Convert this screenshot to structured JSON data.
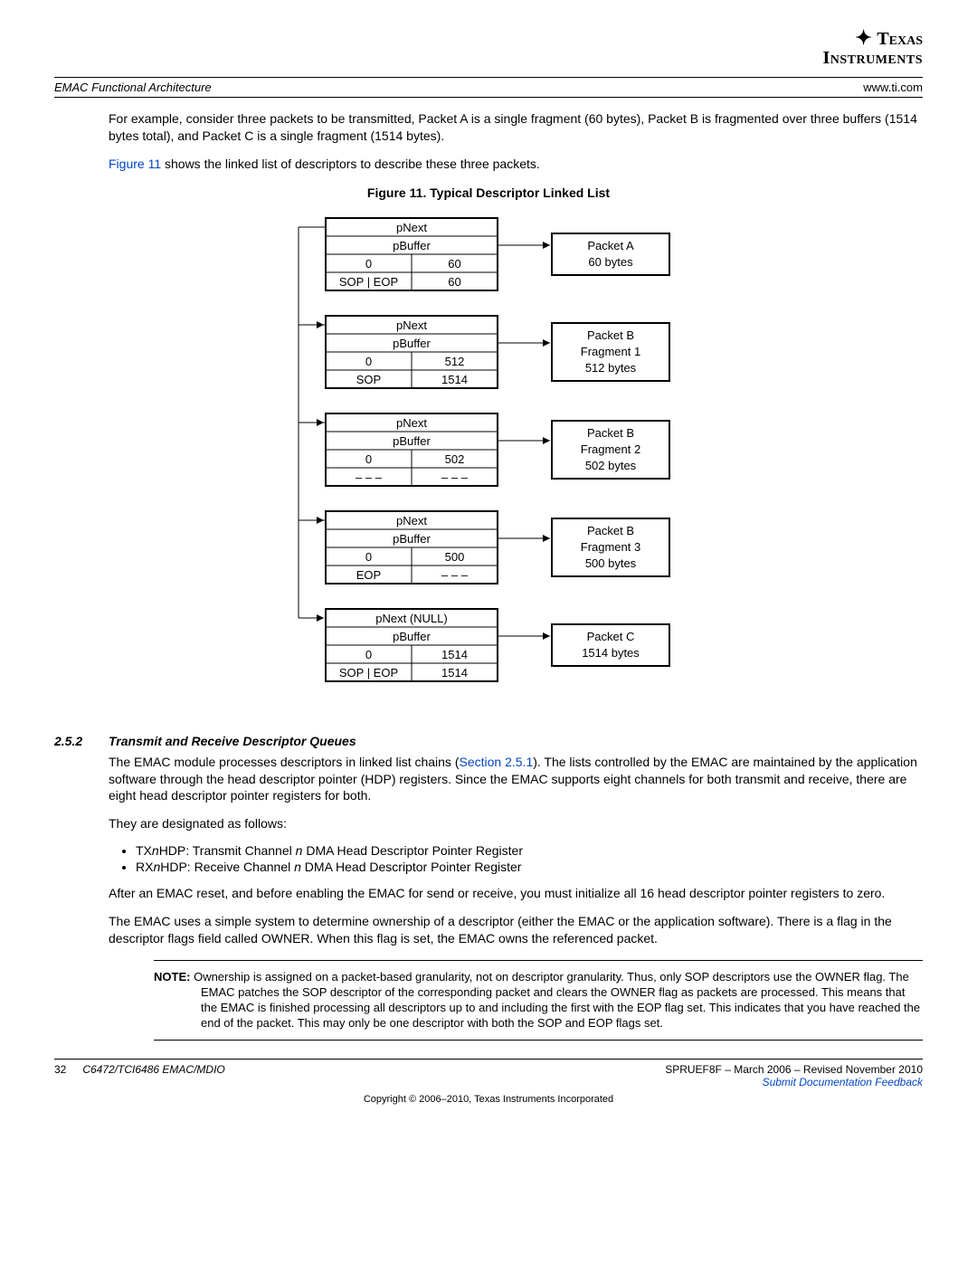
{
  "logo": {
    "line1": "Texas",
    "line2": "Instruments"
  },
  "header": {
    "left": "EMAC Functional Architecture",
    "right": "www.ti.com"
  },
  "para1": "For example, consider three packets to be transmitted, Packet A is a single fragment (60 bytes), Packet B is fragmented over three buffers (1514 bytes total), and Packet C is a single fragment (1514 bytes).",
  "para2_pre": "Figure 11",
  "para2_post": " shows the linked list of descriptors to describe these three packets.",
  "fig_caption": "Figure 11. Typical Descriptor Linked List",
  "diagram": {
    "descriptors": [
      {
        "pnext": "pNext",
        "pbuf": "pBuffer",
        "w3l": "0",
        "w3r": "60",
        "w4l": "SOP | EOP",
        "w4r": "60",
        "packet": [
          "Packet A",
          "60 bytes"
        ]
      },
      {
        "pnext": "pNext",
        "pbuf": "pBuffer",
        "w3l": "0",
        "w3r": "512",
        "w4l": "SOP",
        "w4r": "1514",
        "packet": [
          "Packet B",
          "Fragment 1",
          "512 bytes"
        ]
      },
      {
        "pnext": "pNext",
        "pbuf": "pBuffer",
        "w3l": "0",
        "w3r": "502",
        "w4l": "– – –",
        "w4r": "– – –",
        "packet": [
          "Packet B",
          "Fragment 2",
          "502 bytes"
        ]
      },
      {
        "pnext": "pNext",
        "pbuf": "pBuffer",
        "w3l": "0",
        "w3r": "500",
        "w4l": "EOP",
        "w4r": "– – –",
        "packet": [
          "Packet B",
          "Fragment 3",
          "500 bytes"
        ]
      },
      {
        "pnext": "pNext (NULL)",
        "pbuf": "pBuffer",
        "w3l": "0",
        "w3r": "1514",
        "w4l": "SOP | EOP",
        "w4r": "1514",
        "packet": [
          "Packet C",
          "1514 bytes"
        ]
      }
    ]
  },
  "section": {
    "num": "2.5.2",
    "title": "Transmit and Receive Descriptor Queues"
  },
  "p3a": "The EMAC module processes descriptors in linked list chains (",
  "p3link": "Section 2.5.1",
  "p3b": "). The lists controlled by the EMAC are maintained by the application software through the head descriptor pointer (HDP) registers. Since the EMAC supports eight channels for both transmit and receive, there are eight head descriptor pointer registers for both.",
  "p4": "They are designated as follows:",
  "bullets": [
    {
      "a": "TX",
      "n": "n",
      "b": "HDP: Transmit Channel ",
      "n2": "n",
      "c": " DMA Head Descriptor Pointer Register"
    },
    {
      "a": "RX",
      "n": "n",
      "b": "HDP: Receive Channel ",
      "n2": "n",
      "c": " DMA Head Descriptor Pointer Register"
    }
  ],
  "p5": "After an EMAC reset, and before enabling the EMAC for send or receive, you must initialize all 16 head descriptor pointer registers to zero.",
  "p6": "The EMAC uses a simple system to determine ownership of a descriptor (either the EMAC or the application software). There is a flag in the descriptor flags field called OWNER. When this flag is set, the EMAC owns the referenced packet.",
  "note_label": "NOTE:",
  "note_text": "Ownership is assigned on a packet-based granularity, not on descriptor granularity. Thus, only SOP descriptors use the OWNER flag. The EMAC patches the SOP descriptor of the corresponding packet and clears the OWNER flag as packets are processed. This means that the EMAC is finished processing all descriptors up to and including the first with the EOP flag set. This indicates that you have reached the end of the packet. This may only be one descriptor with both the SOP and EOP flags set.",
  "footer": {
    "page": "32",
    "doc": "C6472/TCI6486 EMAC/MDIO",
    "pub": "SPRUEF8F – March 2006 – Revised November 2010",
    "feedback": "Submit Documentation Feedback"
  },
  "copyright": "Copyright © 2006–2010, Texas Instruments Incorporated"
}
